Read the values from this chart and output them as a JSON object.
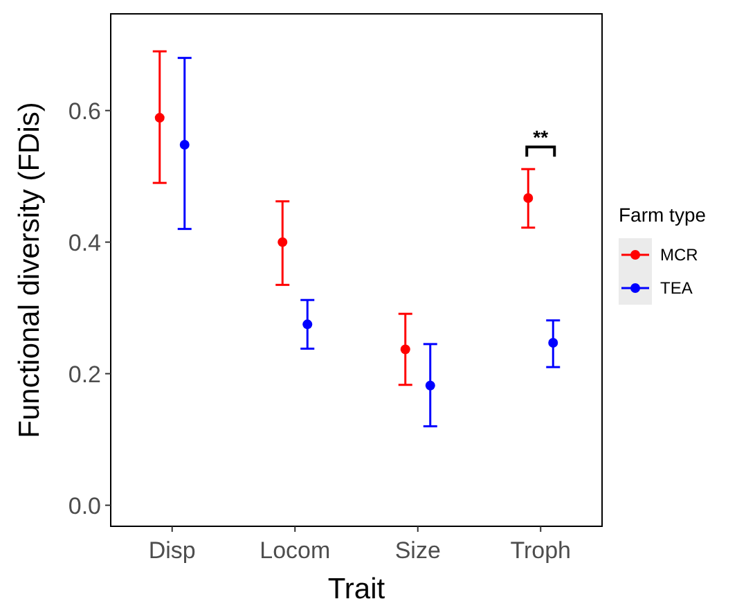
{
  "chart_data": {
    "type": "scatter",
    "xlabel": "Trait",
    "ylabel": "Functional diversity (FDis)",
    "legend_title": "Farm type",
    "categories": [
      "Disp",
      "Locom",
      "Size",
      "Troph"
    ],
    "ylim": [
      -0.032,
      0.747
    ],
    "yticks": [
      {
        "value": 0,
        "label": "0.0"
      },
      0.2,
      0.4,
      0.6
    ],
    "grid": false,
    "legend": "right",
    "marker": "circle",
    "series": [
      {
        "name": "MCR",
        "color": "#ff0000",
        "values": [
          0.589,
          0.4,
          0.237,
          0.467
        ],
        "errors": [
          [
            0.49,
            0.69
          ],
          [
            0.335,
            0.462
          ],
          [
            0.183,
            0.291
          ],
          [
            0.422,
            0.511
          ]
        ]
      },
      {
        "name": "TEA",
        "color": "#0000ff",
        "values": [
          0.548,
          0.275,
          0.182,
          0.247
        ],
        "errors": [
          [
            0.42,
            0.68
          ],
          [
            0.238,
            0.312
          ],
          [
            0.12,
            0.245
          ],
          [
            0.21,
            0.281
          ]
        ]
      }
    ],
    "annotations": [
      "**"
    ]
  }
}
